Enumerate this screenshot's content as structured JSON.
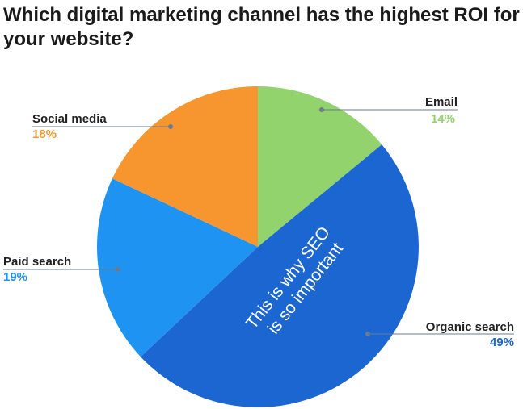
{
  "chart_data": {
    "type": "pie",
    "title": "Which digital marketing channel has the highest ROI for your website?",
    "slices": [
      {
        "label": "Email",
        "value": 14,
        "value_label": "14%",
        "color": "#92D36E"
      },
      {
        "label": "Organic search",
        "value": 49,
        "value_label": "49%",
        "color": "#1C66D1"
      },
      {
        "label": "Paid search",
        "value": 19,
        "value_label": "19%",
        "color": "#1E93F2"
      },
      {
        "label": "Social media",
        "value": 18,
        "value_label": "18%",
        "color": "#F7962F"
      }
    ],
    "annotation": [
      "This is why SEO",
      "is so important"
    ],
    "colors": {
      "title": "#1a1a1a",
      "category_text": "#222222",
      "leader_line": "#6b7b8c",
      "annotation_text": "#ffffff"
    }
  }
}
